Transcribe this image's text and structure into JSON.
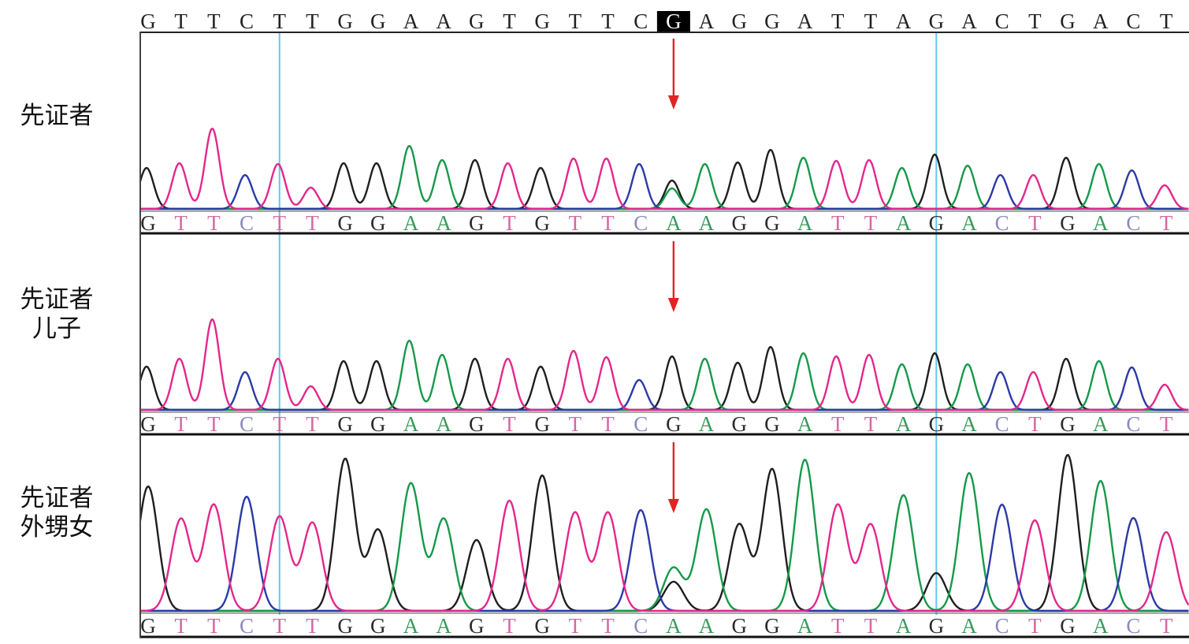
{
  "colors": {
    "trace": {
      "G": "#1f1f1f",
      "A": "#16994a",
      "T": "#e3288c",
      "C": "#2b3aa6"
    },
    "basecall": {
      "G": "#2b2b2b",
      "A": "#3a9a5c",
      "T": "#d46aa4",
      "C": "#8a8abf"
    },
    "reference_text": "#222222",
    "highlight_text": "#ffffff",
    "highlight_bg": "#000000",
    "marker_line": "#5ec8ee",
    "arrow": "#e02424",
    "frame": "#222222"
  },
  "chart_data": {
    "type": "line",
    "reference_sequence": [
      "G",
      "T",
      "T",
      "C",
      "T",
      "T",
      "G",
      "G",
      "A",
      "A",
      "G",
      "T",
      "G",
      "T",
      "T",
      "C",
      "G",
      "A",
      "G",
      "G",
      "A",
      "T",
      "T",
      "A",
      "G",
      "A",
      "C",
      "T",
      "G",
      "A",
      "C",
      "T"
    ],
    "highlighted_position": 17,
    "marker_positions": [
      5,
      25
    ],
    "arrow_position": 17,
    "panels": [
      {
        "label_lines": [
          "先证者"
        ],
        "basecalls": [
          "G",
          "T",
          "T",
          "C",
          "T",
          "T",
          "G",
          "G",
          "A",
          "A",
          "G",
          "T",
          "G",
          "T",
          "T",
          "C",
          "A",
          "A",
          "G",
          "G",
          "A",
          "T",
          "T",
          "A",
          "G",
          "A",
          "C",
          "T",
          "G",
          "A",
          "C",
          "T"
        ],
        "peaks": [
          {
            "G": 52
          },
          {
            "T": 58
          },
          {
            "T": 102
          },
          {
            "C": 43
          },
          {
            "T": 57
          },
          {
            "T": 27
          },
          {
            "G": 58
          },
          {
            "G": 58
          },
          {
            "A": 80
          },
          {
            "A": 62
          },
          {
            "G": 62
          },
          {
            "T": 58
          },
          {
            "G": 52
          },
          {
            "T": 64
          },
          {
            "T": 64
          },
          {
            "C": 57
          },
          {
            "A": 26,
            "G": 36
          },
          {
            "A": 57
          },
          {
            "G": 59
          },
          {
            "G": 75
          },
          {
            "A": 65
          },
          {
            "T": 61
          },
          {
            "T": 62
          },
          {
            "A": 52
          },
          {
            "G": 69
          },
          {
            "A": 55
          },
          {
            "C": 43
          },
          {
            "T": 43
          },
          {
            "G": 65
          },
          {
            "A": 57
          },
          {
            "C": 49
          },
          {
            "T": 30
          }
        ]
      },
      {
        "label_lines": [
          "先证者",
          "儿子"
        ],
        "basecalls": [
          "G",
          "T",
          "T",
          "C",
          "T",
          "T",
          "G",
          "G",
          "A",
          "A",
          "G",
          "T",
          "G",
          "T",
          "T",
          "C",
          "G",
          "A",
          "G",
          "G",
          "A",
          "T",
          "T",
          "A",
          "G",
          "A",
          "C",
          "T",
          "G",
          "A",
          "C",
          "T"
        ],
        "peaks": [
          {
            "G": 55
          },
          {
            "T": 65
          },
          {
            "T": 115
          },
          {
            "C": 48
          },
          {
            "T": 65
          },
          {
            "T": 30
          },
          {
            "G": 62
          },
          {
            "G": 62
          },
          {
            "A": 88
          },
          {
            "A": 70
          },
          {
            "G": 65
          },
          {
            "T": 65
          },
          {
            "G": 55
          },
          {
            "T": 75
          },
          {
            "T": 67
          },
          {
            "C": 38
          },
          {
            "G": 68
          },
          {
            "A": 65
          },
          {
            "G": 60
          },
          {
            "G": 80
          },
          {
            "A": 72
          },
          {
            "T": 68
          },
          {
            "T": 70
          },
          {
            "A": 58
          },
          {
            "G": 72
          },
          {
            "A": 58
          },
          {
            "C": 48
          },
          {
            "T": 48
          },
          {
            "G": 65
          },
          {
            "A": 62
          },
          {
            "C": 54
          },
          {
            "T": 32
          }
        ]
      },
      {
        "label_lines": [
          "先证者",
          "外甥女"
        ],
        "basecalls": [
          "G",
          "T",
          "T",
          "C",
          "T",
          "T",
          "G",
          "G",
          "A",
          "A",
          "G",
          "T",
          "G",
          "T",
          "T",
          "C",
          "A",
          "A",
          "G",
          "G",
          "A",
          "T",
          "T",
          "A",
          "G",
          "A",
          "C",
          "T",
          "G",
          "A",
          "C",
          "T"
        ],
        "peaks": [
          {
            "G": 158
          },
          {
            "T": 117
          },
          {
            "T": 135
          },
          {
            "C": 145
          },
          {
            "T": 120
          },
          {
            "T": 112
          },
          {
            "G": 193
          },
          {
            "G": 103
          },
          {
            "A": 162
          },
          {
            "A": 117
          },
          {
            "G": 90
          },
          {
            "T": 140
          },
          {
            "G": 172
          },
          {
            "T": 125
          },
          {
            "T": 125
          },
          {
            "C": 128
          },
          {
            "A": 55,
            "G": 37
          },
          {
            "A": 129
          },
          {
            "G": 110
          },
          {
            "G": 180
          },
          {
            "A": 192
          },
          {
            "T": 135
          },
          {
            "T": 110
          },
          {
            "A": 147
          },
          {
            "G": 48
          },
          {
            "A": 175
          },
          {
            "C": 135
          },
          {
            "T": 115
          },
          {
            "G": 198
          },
          {
            "A": 165
          },
          {
            "C": 118
          },
          {
            "T": 100
          }
        ]
      }
    ]
  }
}
